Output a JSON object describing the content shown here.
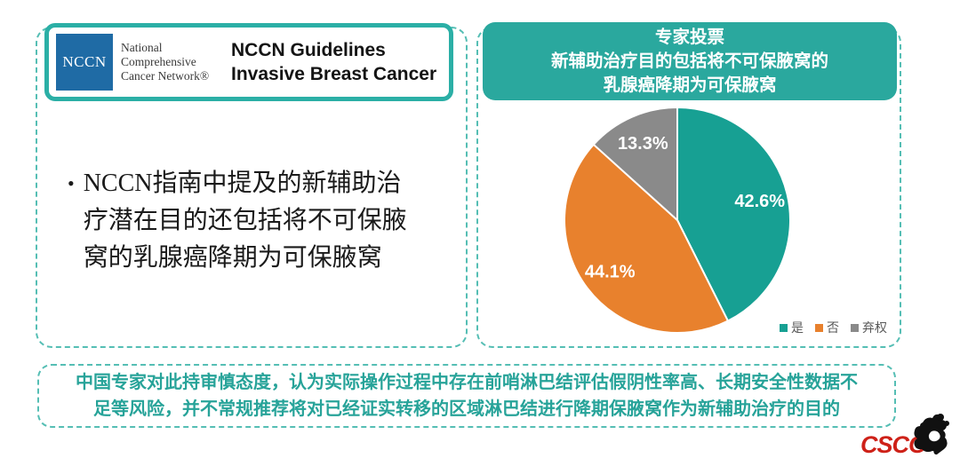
{
  "left_panel": {
    "nccn_logo": {
      "acronym": "NCCN",
      "org_name": "National Comprehensive Cancer Network®"
    },
    "title_lines": [
      "NCCN Guidelines",
      "Invasive Breast Cancer"
    ],
    "bullet_marker": "•",
    "bullet_lines": [
      "NCCN指南中提及的新辅助治",
      "疗潜在目的还包括将不可保腋",
      "窝的乳腺癌降期为可保腋窝"
    ]
  },
  "right_panel": {
    "header_lines": [
      "专家投票",
      "新辅助治疗目的包括将不可保腋窝的",
      "乳腺癌降期为可保腋窝"
    ]
  },
  "chart_data": {
    "type": "pie",
    "title": "专家投票：新辅助治疗目的包括将不可保腋窝的乳腺癌降期为可保腋窝",
    "labels": [
      "是",
      "否",
      "弃权"
    ],
    "keys": [
      "yes",
      "no",
      "abstain"
    ],
    "values": [
      42.6,
      44.1,
      13.3
    ],
    "value_labels": [
      "42.6%",
      "44.1%",
      "13.3%"
    ],
    "colors": [
      "#17a093",
      "#e8812d",
      "#8a8a8a"
    ],
    "start_angle_deg": 0,
    "direction": "clockwise",
    "legend_position": "bottom-right"
  },
  "footer_box": {
    "lines": [
      "中国专家对此持审慎态度，认为实际操作过程中存在前哨淋巴结评估假阴性率高、长期安全性数据不",
      "足等风险，并不常规推荐将对已经证实转移的区域淋巴结进行降期保腋窝作为新辅助治疗的目的"
    ]
  },
  "logo": {
    "text": "CSCO"
  },
  "colors": {
    "accent_teal": "#2bafa6",
    "dashed_border_teal": "#55beb4",
    "header_fill_teal": "#2aa89e",
    "footer_text_teal": "#27a399",
    "nccn_blue": "#1f6ba5",
    "csco_red": "#ce2118"
  }
}
